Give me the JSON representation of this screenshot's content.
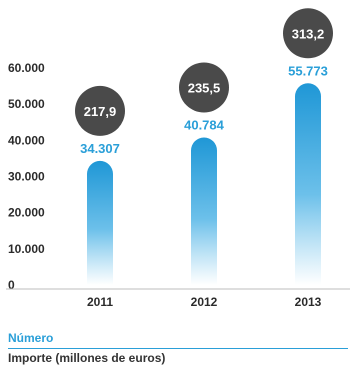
{
  "chart_data": {
    "type": "bar",
    "categories": [
      "2011",
      "2012",
      "2013"
    ],
    "series": [
      {
        "name": "Número",
        "values": [
          34307,
          40784,
          55773
        ],
        "labels": [
          "34.307",
          "40.784",
          "55.773"
        ],
        "color": "#2a9fd8"
      },
      {
        "name": "Importe (millones de euros)",
        "values": [
          217.9,
          235.5,
          313.2
        ],
        "labels": [
          "217,9",
          "235,5",
          "313,2"
        ],
        "color": "#4a4a4a"
      }
    ],
    "yticks": [
      {
        "value": 0,
        "label": "0"
      },
      {
        "value": 10000,
        "label": "10.000"
      },
      {
        "value": 20000,
        "label": "20.000"
      },
      {
        "value": 30000,
        "label": "30.000"
      },
      {
        "value": 40000,
        "label": "40.000"
      },
      {
        "value": 50000,
        "label": "50.000"
      },
      {
        "value": 60000,
        "label": "60.000"
      }
    ],
    "ylim": [
      0,
      60000
    ],
    "grid": false,
    "legend_position": "bottom-left"
  },
  "legend": {
    "numero": "Número",
    "importe": "Importe (millones de euros)"
  }
}
